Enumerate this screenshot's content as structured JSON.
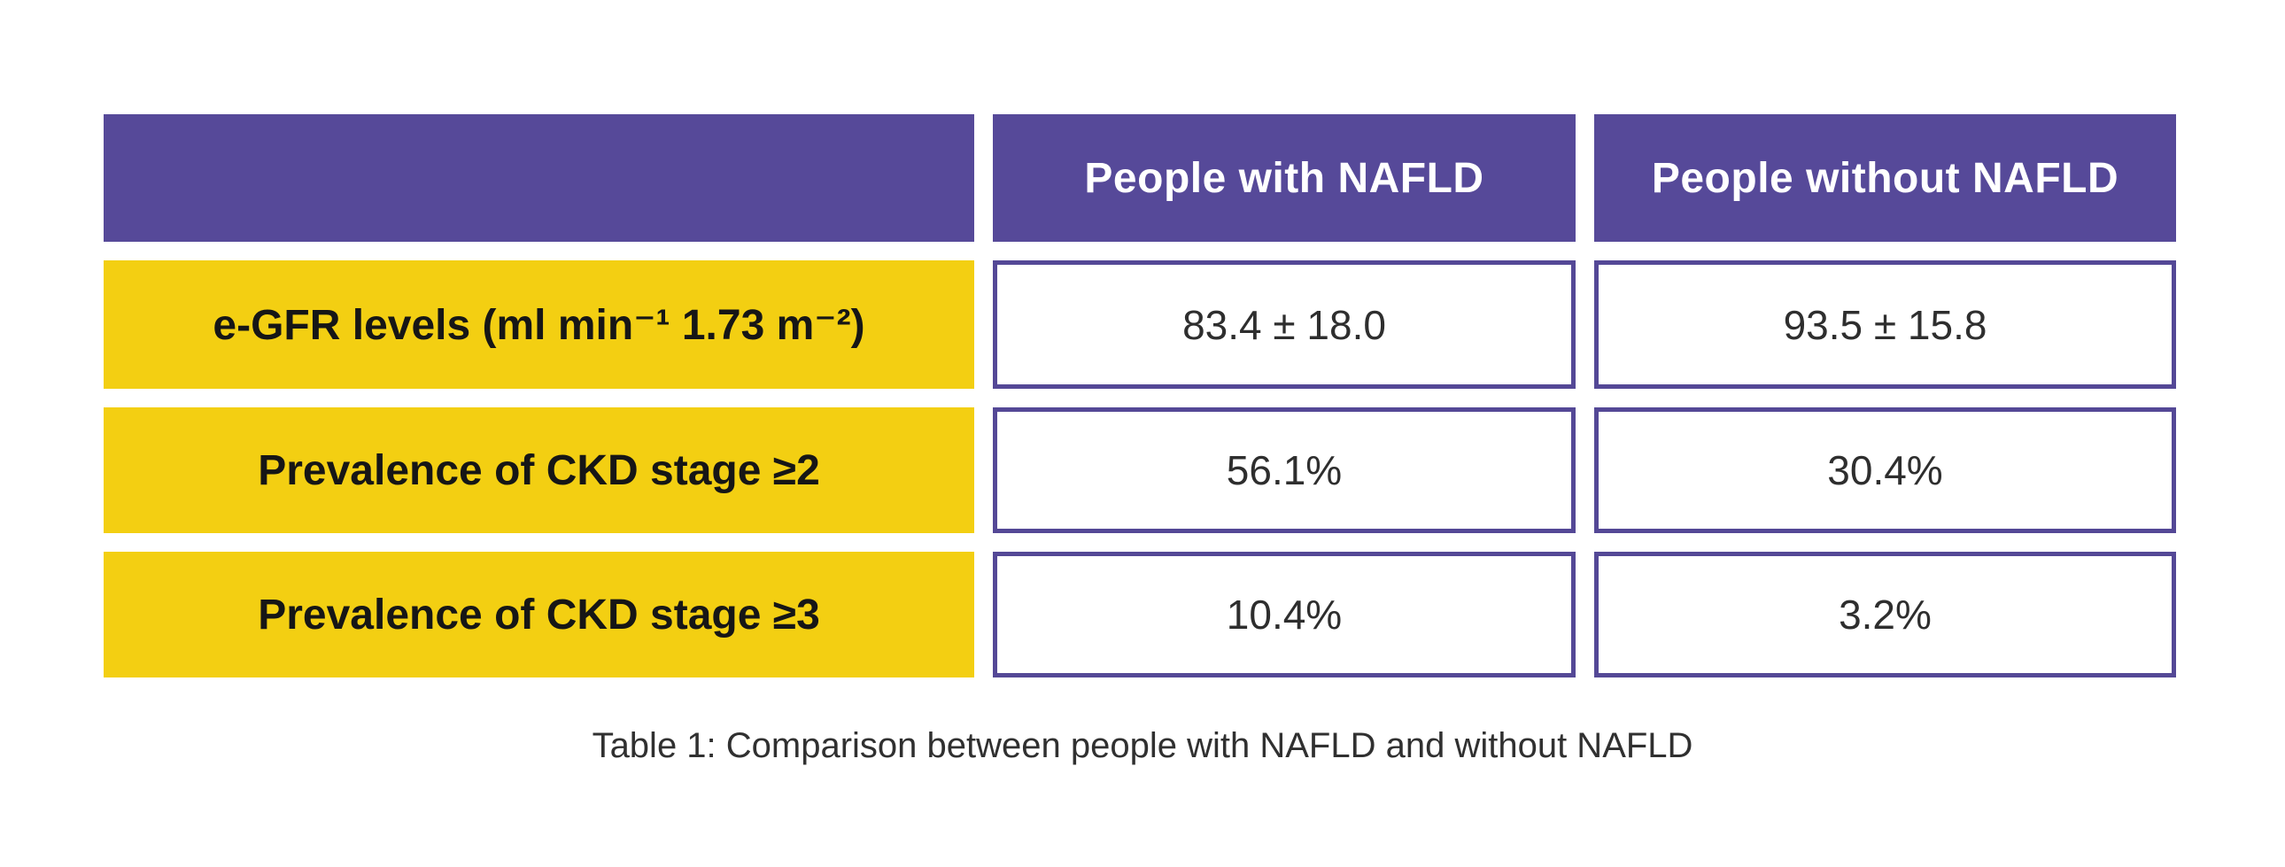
{
  "table": {
    "columns": [
      "",
      "People with NAFLD",
      "People without NAFLD"
    ],
    "rows": [
      {
        "label": "e-GFR levels (ml min⁻¹ 1.73 m⁻²)",
        "values": [
          "83.4 ± 18.0",
          "93.5 ± 15.8"
        ]
      },
      {
        "label": "Prevalence of CKD stage ≥2",
        "values": [
          "56.1%",
          "30.4%"
        ]
      },
      {
        "label": "Prevalence of CKD stage ≥3",
        "values": [
          "10.4%",
          "3.2%"
        ]
      }
    ],
    "caption": "Table 1: Comparison between people with NAFLD and without NAFLD"
  },
  "chart_data": {
    "type": "table",
    "title": "Table 1: Comparison between people with NAFLD and without NAFLD",
    "columns": [
      "",
      "People with NAFLD",
      "People without NAFLD"
    ],
    "rows": [
      [
        "e-GFR levels (ml min⁻¹ 1.73 m⁻²)",
        "83.4 ± 18.0",
        "93.5 ± 15.8"
      ],
      [
        "Prevalence of CKD stage ≥2",
        "56.1%",
        "30.4%"
      ],
      [
        "Prevalence of CKD stage ≥3",
        "10.4%",
        "3.2%"
      ]
    ],
    "numeric": {
      "egfr_with_nafld_mean": 83.4,
      "egfr_with_nafld_sd": 18.0,
      "egfr_without_nafld_mean": 93.5,
      "egfr_without_nafld_sd": 15.8,
      "ckd_stage2_with_nafld_pct": 56.1,
      "ckd_stage2_without_nafld_pct": 30.4,
      "ckd_stage3_with_nafld_pct": 10.4,
      "ckd_stage3_without_nafld_pct": 3.2
    }
  },
  "colors": {
    "header_purple": "#564999",
    "cell_border_purple": "#544896",
    "label_yellow": "#F3CF12",
    "header_text": "#FFFFFF",
    "body_text": "#2E2E2E",
    "background": "#FFFFFF"
  }
}
